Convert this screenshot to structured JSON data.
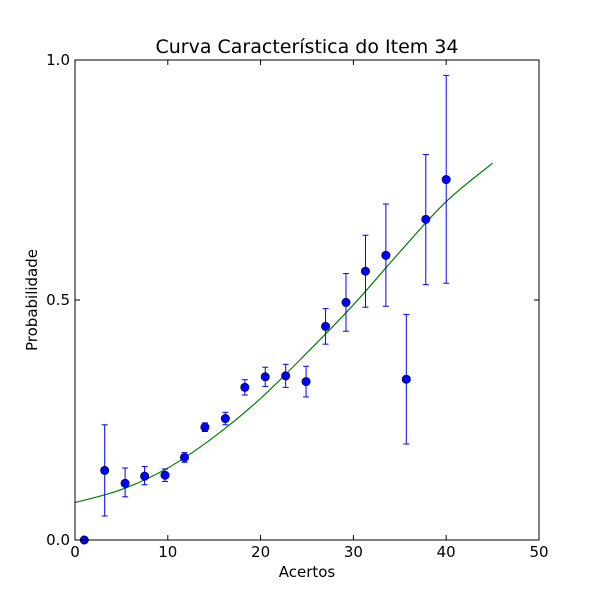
{
  "chart_data": {
    "type": "scatter",
    "title": "Curva Característica do Item 34",
    "xlabel": "Acertos",
    "ylabel": "Probabilidade",
    "xlim": [
      0,
      50
    ],
    "ylim": [
      0.0,
      1.0
    ],
    "xticks": [
      0,
      10,
      20,
      30,
      40,
      50
    ],
    "xtick_labels": [
      "0",
      "10",
      "20",
      "30",
      "40",
      "50"
    ],
    "yticks": [
      0.0,
      0.5,
      1.0
    ],
    "ytick_labels": [
      "0.0",
      "0.5",
      "1.0"
    ],
    "grid": false,
    "series": [
      {
        "kind": "points_with_errorbars",
        "color": "#0000ff",
        "points": [
          {
            "x": 1.0,
            "y": 0.0,
            "lo": 0.0,
            "hi": 0.0
          },
          {
            "x": 3.2,
            "y": 0.145,
            "lo": 0.05,
            "hi": 0.24
          },
          {
            "x": 5.4,
            "y": 0.118,
            "lo": 0.09,
            "hi": 0.15
          },
          {
            "x": 7.5,
            "y": 0.133,
            "lo": 0.115,
            "hi": 0.153
          },
          {
            "x": 9.7,
            "y": 0.135,
            "lo": 0.122,
            "hi": 0.148
          },
          {
            "x": 11.8,
            "y": 0.172,
            "lo": 0.162,
            "hi": 0.182
          },
          {
            "x": 14.0,
            "y": 0.235,
            "lo": 0.226,
            "hi": 0.244
          },
          {
            "x": 16.2,
            "y": 0.253,
            "lo": 0.24,
            "hi": 0.266
          },
          {
            "x": 18.3,
            "y": 0.318,
            "lo": 0.302,
            "hi": 0.334
          },
          {
            "x": 20.5,
            "y": 0.34,
            "lo": 0.32,
            "hi": 0.36
          },
          {
            "x": 22.7,
            "y": 0.342,
            "lo": 0.318,
            "hi": 0.366
          },
          {
            "x": 24.9,
            "y": 0.33,
            "lo": 0.298,
            "hi": 0.362
          },
          {
            "x": 27.0,
            "y": 0.445,
            "lo": 0.408,
            "hi": 0.482
          },
          {
            "x": 29.2,
            "y": 0.495,
            "lo": 0.435,
            "hi": 0.555
          },
          {
            "x": 31.3,
            "y": 0.56,
            "lo": 0.485,
            "hi": 0.635
          },
          {
            "x": 33.5,
            "y": 0.593,
            "lo": 0.487,
            "hi": 0.7
          },
          {
            "x": 35.7,
            "y": 0.335,
            "lo": 0.2,
            "hi": 0.47
          },
          {
            "x": 37.8,
            "y": 0.668,
            "lo": 0.532,
            "hi": 0.803
          },
          {
            "x": 40.0,
            "y": 0.751,
            "lo": 0.535,
            "hi": 0.968
          }
        ]
      },
      {
        "kind": "line",
        "color": "#008000",
        "x": [
          0,
          5,
          10,
          15,
          20,
          25,
          30,
          35,
          40,
          45
        ],
        "y": [
          0.078,
          0.105,
          0.15,
          0.215,
          0.295,
          0.39,
          0.49,
          0.6,
          0.705,
          0.785
        ]
      }
    ]
  }
}
